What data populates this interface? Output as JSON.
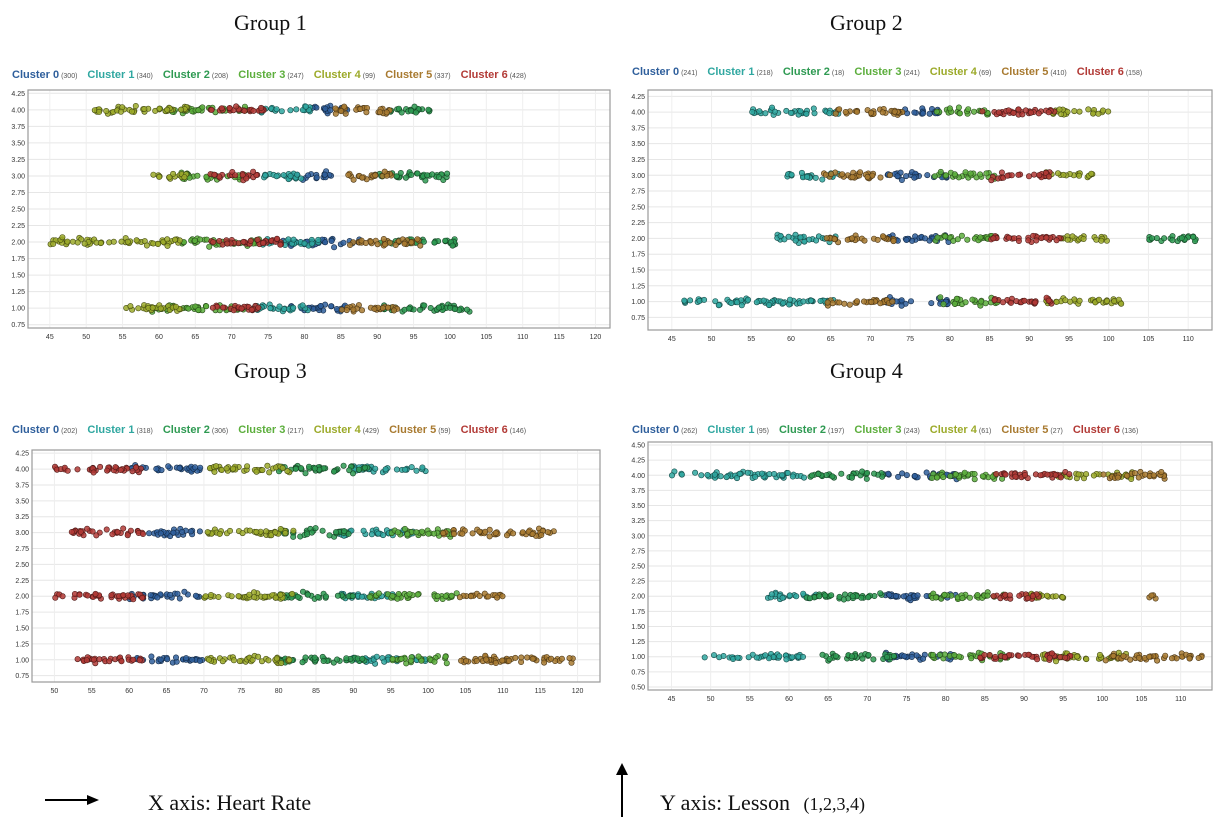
{
  "footer": {
    "x_axis_label": "X axis: Heart Rate",
    "y_axis_label": "Y axis: Lesson",
    "y_axis_values": "(1,2,3,4)"
  },
  "cluster_colors": [
    "#2f5f9c",
    "#2fa7a0",
    "#2e9a52",
    "#5cae3c",
    "#9caa2a",
    "#a87a30",
    "#b23a36"
  ],
  "chart_data": [
    {
      "type": "scatter",
      "title": "Group 1",
      "xlabel": "",
      "ylabel": "",
      "xlim": [
        42,
        122
      ],
      "ylim": [
        0.7,
        4.3
      ],
      "xticks": [
        45,
        50,
        55,
        60,
        65,
        70,
        75,
        80,
        85,
        90,
        95,
        100,
        105,
        110,
        115,
        120
      ],
      "yticks": [
        0.75,
        1.0,
        1.25,
        1.5,
        1.75,
        2.0,
        2.25,
        2.5,
        2.75,
        3.0,
        3.25,
        3.5,
        3.75,
        4.0,
        4.25
      ],
      "grid": true,
      "legend_position": "top",
      "series": [
        {
          "name": "Cluster 0",
          "count": "(300)",
          "lesson_ranges": [
            {
              "lesson": 2,
              "x": [
                77,
                88
              ]
            },
            {
              "lesson": 4,
              "x": [
                80,
                86
              ]
            },
            {
              "lesson": 3,
              "x": [
                78,
                84
              ]
            },
            {
              "lesson": 1,
              "x": [
                78,
                86
              ]
            }
          ]
        },
        {
          "name": "Cluster 1",
          "count": "(340)",
          "lesson_ranges": [
            {
              "lesson": 2,
              "x": [
                74,
                82
              ]
            },
            {
              "lesson": 4,
              "x": [
                74,
                81
              ]
            },
            {
              "lesson": 3,
              "x": [
                74,
                80
              ]
            },
            {
              "lesson": 1,
              "x": [
                73,
                82
              ]
            }
          ]
        },
        {
          "name": "Cluster 2",
          "count": "(208)",
          "lesson_ranges": [
            {
              "lesson": 2,
              "x": [
                90,
                101
              ]
            },
            {
              "lesson": 3,
              "x": [
                89,
                100
              ]
            },
            {
              "lesson": 4,
              "x": [
                91,
                98
              ]
            },
            {
              "lesson": 1,
              "x": [
                90,
                103
              ]
            }
          ]
        },
        {
          "name": "Cluster 3",
          "count": "(247)",
          "lesson_ranges": [
            {
              "lesson": 4,
              "x": [
                60,
                72
              ]
            },
            {
              "lesson": 3,
              "x": [
                63,
                72
              ]
            },
            {
              "lesson": 2,
              "x": [
                62,
                74
              ]
            },
            {
              "lesson": 1,
              "x": [
                58,
                72
              ]
            }
          ]
        },
        {
          "name": "Cluster 4",
          "count": "(99)",
          "lesson_ranges": [
            {
              "lesson": 4,
              "x": [
                51,
                64
              ]
            },
            {
              "lesson": 2,
              "x": [
                45,
                63
              ]
            },
            {
              "lesson": 1,
              "x": [
                55,
                63
              ]
            },
            {
              "lesson": 3,
              "x": [
                59,
                64
              ]
            }
          ]
        },
        {
          "name": "Cluster 5",
          "count": "(337)",
          "lesson_ranges": [
            {
              "lesson": 4,
              "x": [
                84,
                92
              ]
            },
            {
              "lesson": 3,
              "x": [
                85,
                92
              ]
            },
            {
              "lesson": 2,
              "x": [
                86,
                96
              ]
            },
            {
              "lesson": 1,
              "x": [
                85,
                93
              ]
            }
          ]
        },
        {
          "name": "Cluster 6",
          "count": "(428)",
          "lesson_ranges": [
            {
              "lesson": 4,
              "x": [
                67,
                75
              ]
            },
            {
              "lesson": 3,
              "x": [
                67,
                74
              ]
            },
            {
              "lesson": 2,
              "x": [
                67,
                77
              ]
            },
            {
              "lesson": 1,
              "x": [
                67,
                74
              ]
            }
          ]
        }
      ]
    },
    {
      "type": "scatter",
      "title": "Group 2",
      "xlabel": "",
      "ylabel": "",
      "xlim": [
        42,
        113
      ],
      "ylim": [
        0.55,
        4.35
      ],
      "xticks": [
        45,
        50,
        55,
        60,
        65,
        70,
        75,
        80,
        85,
        90,
        95,
        100,
        105,
        110
      ],
      "yticks": [
        0.75,
        1.0,
        1.25,
        1.5,
        1.75,
        2.0,
        2.25,
        2.5,
        2.75,
        3.0,
        3.25,
        3.5,
        3.75,
        4.0,
        4.25
      ],
      "grid": true,
      "legend_position": "top",
      "series": [
        {
          "name": "Cluster 0",
          "count": "(241)",
          "lesson_ranges": [
            {
              "lesson": 4,
              "x": [
                72,
                79
              ]
            },
            {
              "lesson": 3,
              "x": [
                72,
                80
              ]
            },
            {
              "lesson": 2,
              "x": [
                72,
                80
              ]
            },
            {
              "lesson": 1,
              "x": [
                72,
                80
              ]
            }
          ]
        },
        {
          "name": "Cluster 1",
          "count": "(218)",
          "lesson_ranges": [
            {
              "lesson": 4,
              "x": [
                55,
                66
              ]
            },
            {
              "lesson": 3,
              "x": [
                59,
                66
              ]
            },
            {
              "lesson": 2,
              "x": [
                58,
                66
              ]
            },
            {
              "lesson": 1,
              "x": [
                46,
                66
              ]
            }
          ]
        },
        {
          "name": "Cluster 2",
          "count": "(18)",
          "lesson_ranges": [
            {
              "lesson": 2,
              "x": [
                104,
                111
              ]
            }
          ]
        },
        {
          "name": "Cluster 3",
          "count": "(241)",
          "lesson_ranges": [
            {
              "lesson": 4,
              "x": [
                78,
                85
              ]
            },
            {
              "lesson": 3,
              "x": [
                78,
                86
              ]
            },
            {
              "lesson": 2,
              "x": [
                78,
                86
              ]
            },
            {
              "lesson": 1,
              "x": [
                78,
                86
              ]
            }
          ]
        },
        {
          "name": "Cluster 4",
          "count": "(69)",
          "lesson_ranges": [
            {
              "lesson": 4,
              "x": [
                93,
                100
              ]
            },
            {
              "lesson": 3,
              "x": [
                92,
                98
              ]
            },
            {
              "lesson": 2,
              "x": [
                94,
                100
              ]
            },
            {
              "lesson": 1,
              "x": [
                92,
                102
              ]
            }
          ]
        },
        {
          "name": "Cluster 5",
          "count": "(410)",
          "lesson_ranges": [
            {
              "lesson": 4,
              "x": [
                65,
                74
              ]
            },
            {
              "lesson": 3,
              "x": [
                64,
                73
              ]
            },
            {
              "lesson": 2,
              "x": [
                64,
                73
              ]
            },
            {
              "lesson": 1,
              "x": [
                64,
                73
              ]
            }
          ]
        },
        {
          "name": "Cluster 6",
          "count": "(158)",
          "lesson_ranges": [
            {
              "lesson": 4,
              "x": [
                84,
                94
              ]
            },
            {
              "lesson": 3,
              "x": [
                85,
                93
              ]
            },
            {
              "lesson": 2,
              "x": [
                85,
                94
              ]
            },
            {
              "lesson": 1,
              "x": [
                85,
                93
              ]
            }
          ]
        }
      ]
    },
    {
      "type": "scatter",
      "title": "Group 3",
      "xlabel": "",
      "ylabel": "",
      "xlim": [
        47,
        123
      ],
      "ylim": [
        0.65,
        4.3
      ],
      "xticks": [
        50,
        55,
        60,
        65,
        70,
        75,
        80,
        85,
        90,
        95,
        100,
        105,
        110,
        115,
        120
      ],
      "yticks": [
        0.75,
        1.0,
        1.25,
        1.5,
        1.75,
        2.0,
        2.25,
        2.5,
        2.75,
        3.0,
        3.25,
        3.5,
        3.75,
        4.0,
        4.25
      ],
      "grid": true,
      "legend_position": "top",
      "series": [
        {
          "name": "Cluster 0",
          "count": "(202)",
          "lesson_ranges": [
            {
              "lesson": 4,
              "x": [
                60,
                70
              ]
            },
            {
              "lesson": 3,
              "x": [
                62,
                70
              ]
            },
            {
              "lesson": 2,
              "x": [
                60,
                70
              ]
            },
            {
              "lesson": 1,
              "x": [
                61,
                70
              ]
            }
          ]
        },
        {
          "name": "Cluster 1",
          "count": "(318)",
          "lesson_ranges": [
            {
              "lesson": 4,
              "x": [
                90,
                100
              ]
            },
            {
              "lesson": 3,
              "x": [
                88,
                98
              ]
            },
            {
              "lesson": 2,
              "x": [
                88,
                96
              ]
            },
            {
              "lesson": 1,
              "x": [
                90,
                100
              ]
            }
          ]
        },
        {
          "name": "Cluster 2",
          "count": "(306)",
          "lesson_ranges": [
            {
              "lesson": 4,
              "x": [
                80,
                92
              ]
            },
            {
              "lesson": 3,
              "x": [
                80,
                90
              ]
            },
            {
              "lesson": 2,
              "x": [
                80,
                90
              ]
            },
            {
              "lesson": 1,
              "x": [
                80,
                92
              ]
            }
          ]
        },
        {
          "name": "Cluster 3",
          "count": "(217)",
          "lesson_ranges": [
            {
              "lesson": 2,
              "x": [
                92,
                104
              ]
            },
            {
              "lesson": 3,
              "x": [
                95,
                104
              ]
            },
            {
              "lesson": 1,
              "x": [
                95,
                103
              ]
            }
          ]
        },
        {
          "name": "Cluster 4",
          "count": "(429)",
          "lesson_ranges": [
            {
              "lesson": 4,
              "x": [
                70,
                82
              ]
            },
            {
              "lesson": 3,
              "x": [
                70,
                82
              ]
            },
            {
              "lesson": 2,
              "x": [
                70,
                82
              ]
            },
            {
              "lesson": 1,
              "x": [
                70,
                82
              ]
            }
          ]
        },
        {
          "name": "Cluster 5",
          "count": "(59)",
          "lesson_ranges": [
            {
              "lesson": 3,
              "x": [
                102,
                117
              ]
            },
            {
              "lesson": 2,
              "x": [
                104,
                110
              ]
            },
            {
              "lesson": 1,
              "x": [
                104,
                121
              ]
            }
          ]
        },
        {
          "name": "Cluster 6",
          "count": "(146)",
          "lesson_ranges": [
            {
              "lesson": 4,
              "x": [
                50,
                62
              ]
            },
            {
              "lesson": 3,
              "x": [
                52,
                62
              ]
            },
            {
              "lesson": 2,
              "x": [
                50,
                62
              ]
            },
            {
              "lesson": 1,
              "x": [
                53,
                62
              ]
            }
          ]
        }
      ]
    },
    {
      "type": "scatter",
      "title": "Group 4",
      "xlabel": "",
      "ylabel": "",
      "xlim": [
        42,
        114
      ],
      "ylim": [
        0.45,
        4.55
      ],
      "xticks": [
        45,
        50,
        55,
        60,
        65,
        70,
        75,
        80,
        85,
        90,
        95,
        100,
        105,
        110
      ],
      "yticks": [
        0.5,
        0.75,
        1.0,
        1.25,
        1.5,
        1.75,
        2.0,
        2.25,
        2.5,
        2.75,
        3.0,
        3.25,
        3.5,
        3.75,
        4.0,
        4.25,
        4.5
      ],
      "grid": true,
      "legend_position": "top",
      "series": [
        {
          "name": "Cluster 0",
          "count": "(262)",
          "lesson_ranges": [
            {
              "lesson": 4,
              "x": [
                72,
                82
              ]
            },
            {
              "lesson": 2,
              "x": [
                72,
                82
              ]
            },
            {
              "lesson": 1,
              "x": [
                72,
                82
              ]
            }
          ]
        },
        {
          "name": "Cluster 1",
          "count": "(95)",
          "lesson_ranges": [
            {
              "lesson": 4,
              "x": [
                45,
                62
              ]
            },
            {
              "lesson": 2,
              "x": [
                57,
                64
              ]
            },
            {
              "lesson": 1,
              "x": [
                49,
                62
              ]
            }
          ]
        },
        {
          "name": "Cluster 2",
          "count": "(197)",
          "lesson_ranges": [
            {
              "lesson": 4,
              "x": [
                62,
                72
              ]
            },
            {
              "lesson": 2,
              "x": [
                62,
                72
              ]
            },
            {
              "lesson": 1,
              "x": [
                64,
                74
              ]
            }
          ]
        },
        {
          "name": "Cluster 3",
          "count": "(243)",
          "lesson_ranges": [
            {
              "lesson": 4,
              "x": [
                78,
                88
              ]
            },
            {
              "lesson": 2,
              "x": [
                78,
                88
              ]
            },
            {
              "lesson": 1,
              "x": [
                78,
                88
              ]
            }
          ]
        },
        {
          "name": "Cluster 4",
          "count": "(61)",
          "lesson_ranges": [
            {
              "lesson": 4,
              "x": [
                94,
                104
              ]
            },
            {
              "lesson": 2,
              "x": [
                90,
                96
              ]
            },
            {
              "lesson": 1,
              "x": [
                92,
                104
              ]
            }
          ]
        },
        {
          "name": "Cluster 5",
          "count": "(27)",
          "lesson_ranges": [
            {
              "lesson": 4,
              "x": [
                100,
                108
              ]
            },
            {
              "lesson": 2,
              "x": [
                106,
                107
              ]
            },
            {
              "lesson": 1,
              "x": [
                100,
                113
              ]
            }
          ]
        },
        {
          "name": "Cluster 6",
          "count": "(136)",
          "lesson_ranges": [
            {
              "lesson": 4,
              "x": [
                86,
                96
              ]
            },
            {
              "lesson": 2,
              "x": [
                86,
                92
              ]
            },
            {
              "lesson": 1,
              "x": [
                84,
                96
              ]
            }
          ]
        }
      ]
    }
  ]
}
